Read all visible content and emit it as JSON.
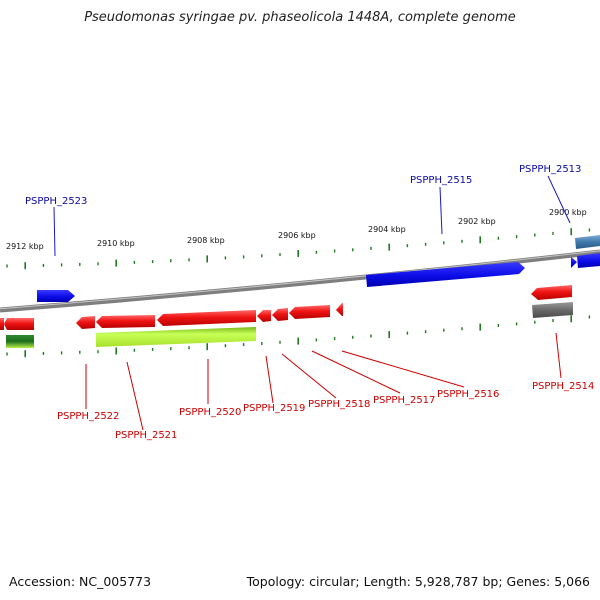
{
  "title": "Pseudomonas syringae pv. phaseolicola 1448A, complete genome",
  "footer": {
    "accession": "Accession: NC_005773",
    "stats": "Topology: circular; Length: 5,928,787 bp; Genes: 5,066"
  },
  "colors": {
    "forward_gene": "#1010e0",
    "reverse_gene": "#e01010",
    "pseudo_gene": "#a8e830",
    "gray_feature": "#707070",
    "steel_feature": "#4a86b8",
    "tick": "#1f7a1f",
    "backbone": "#8a8a8a",
    "label_forward": "#0a0aa8",
    "label_reverse": "#cc0000"
  },
  "scale_ticks": [
    "2912 kbp",
    "2910 kbp",
    "2908 kbp",
    "2906 kbp",
    "2904 kbp",
    "2902 kbp",
    "2900 kbp"
  ],
  "gene_labels": {
    "top": [
      "PSPPH_2523",
      "PSPPH_2515",
      "PSPPH_2513"
    ],
    "bottom": [
      "PSPPH_2522",
      "PSPPH_2521",
      "PSPPH_2520",
      "PSPPH_2519",
      "PSPPH_2518",
      "PSPPH_2517",
      "PSPPH_2516",
      "PSPPH_2514"
    ]
  }
}
